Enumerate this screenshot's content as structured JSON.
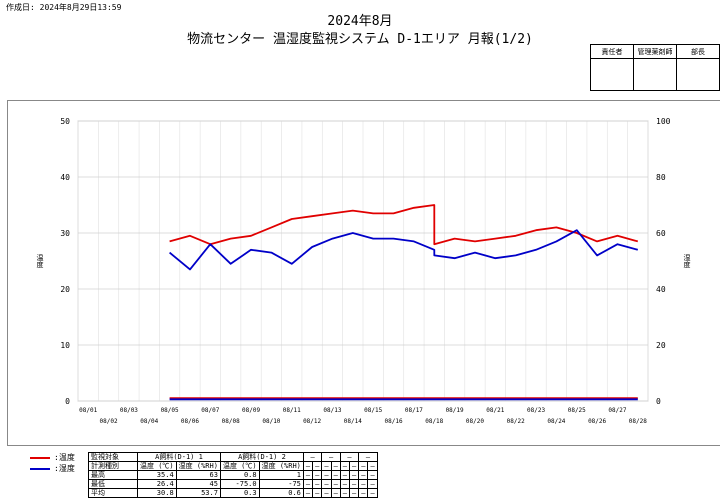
{
  "header": {
    "created": "作成日: 2024年8月29日13:59",
    "title_line1": "2024年8月",
    "title_line2": "物流センター 温湿度監視システム D-1エリア 月報(1/2)"
  },
  "stamp_box": {
    "headers": [
      "責任者",
      "管理薬剤師",
      "部長"
    ]
  },
  "legend": [
    {
      "label": ":温度",
      "color": "#e00000"
    },
    {
      "label": ":湿度",
      "color": "#0000c8"
    }
  ],
  "chart_data": {
    "type": "line",
    "y_left": {
      "label": "温度",
      "min": 0,
      "max": 50,
      "ticks": [
        0,
        10,
        20,
        30,
        40,
        50
      ]
    },
    "y_right": {
      "label": "湿度",
      "min": 0,
      "max": 100,
      "ticks": [
        0,
        20,
        40,
        60,
        80,
        100
      ]
    },
    "x": {
      "min_day": 0,
      "max_day": 28,
      "grid": "daily"
    },
    "x_ticks_top": [
      "08/01",
      "08/03",
      "08/05",
      "08/07",
      "08/09",
      "08/11",
      "08/13",
      "08/15",
      "08/17",
      "08/19",
      "08/21",
      "08/23",
      "08/25",
      "08/27"
    ],
    "x_ticks_bottom": [
      "08/02",
      "08/04",
      "08/06",
      "08/08",
      "08/10",
      "08/12",
      "08/14",
      "08/16",
      "08/18",
      "08/20",
      "08/22",
      "08/24",
      "08/26",
      "08/28"
    ],
    "series": [
      {
        "name": "温度",
        "axis": "left",
        "color": "#e00000",
        "x": [
          "08/05",
          "08/06",
          "08/07",
          "08/08",
          "08/09",
          "08/10",
          "08/11",
          "08/12",
          "08/13",
          "08/14",
          "08/15",
          "08/16",
          "08/17",
          "08/18",
          "08/18",
          "08/19",
          "08/20",
          "08/21",
          "08/22",
          "08/23",
          "08/24",
          "08/25",
          "08/26",
          "08/27",
          "08/28"
        ],
        "y": [
          28.5,
          29.5,
          28,
          29,
          29.5,
          31,
          32.5,
          33,
          33.5,
          34,
          33.5,
          33.5,
          34.5,
          35,
          28,
          29,
          28.5,
          29,
          29.5,
          30.5,
          31,
          30,
          28.5,
          29.5,
          28.5
        ]
      },
      {
        "name": "湿度",
        "axis": "right",
        "color": "#0000c8",
        "x": [
          "08/05",
          "08/06",
          "08/07",
          "08/08",
          "08/09",
          "08/10",
          "08/11",
          "08/12",
          "08/13",
          "08/14",
          "08/15",
          "08/16",
          "08/17",
          "08/18",
          "08/18",
          "08/19",
          "08/20",
          "08/21",
          "08/22",
          "08/23",
          "08/24",
          "08/25",
          "08/26",
          "08/27",
          "08/28"
        ],
        "y": [
          53,
          47,
          56,
          49,
          54,
          53,
          49,
          55,
          58,
          60,
          58,
          58,
          57,
          54,
          52,
          51,
          53,
          51,
          52,
          54,
          57,
          61,
          52,
          56,
          54
        ]
      },
      {
        "name": "",
        "axis": "left",
        "color": "#e00000",
        "x": [
          "08/05",
          "08/28"
        ],
        "y": [
          0.5,
          0.5
        ]
      },
      {
        "name": "",
        "axis": "left",
        "color": "#0000c8",
        "x": [
          "08/05",
          "08/28"
        ],
        "y": [
          0.3,
          0.3
        ]
      }
    ]
  },
  "data_table": {
    "r1_label": "監視対象",
    "r1_groups": [
      "A飼料(D-1) 1",
      "A飼料(D-1) 2",
      "―",
      "―",
      "―",
      "―"
    ],
    "r2_label": "計測種別",
    "r2_cells": [
      "温度 (℃)",
      "湿度 (%RH)",
      "温度 (℃)",
      "湿度 (%RH)",
      "―",
      "―",
      "―",
      "―",
      "―",
      "―",
      "―",
      "―"
    ],
    "rows": [
      {
        "label": "最高",
        "values": [
          "35.4",
          "63",
          "0.8",
          "1",
          "―",
          "―",
          "―",
          "―",
          "―",
          "―",
          "―",
          "―"
        ]
      },
      {
        "label": "最低",
        "values": [
          "26.4",
          "45",
          "-75.0",
          "-75",
          "―",
          "―",
          "―",
          "―",
          "―",
          "―",
          "―",
          "―"
        ]
      },
      {
        "label": "平均",
        "values": [
          "30.8",
          "53.7",
          "0.3",
          "0.6",
          "―",
          "―",
          "―",
          "―",
          "―",
          "―",
          "―",
          "―"
        ]
      }
    ]
  }
}
